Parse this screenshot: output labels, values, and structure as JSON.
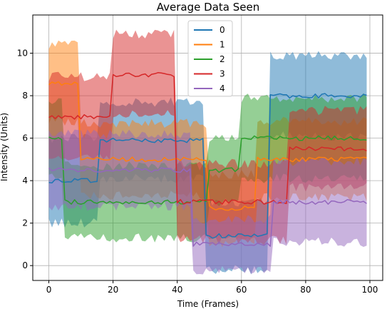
{
  "chart_data": {
    "type": "line",
    "title": "Average Data Seen",
    "xlabel": "Time (Frames)",
    "ylabel": "Intensity (Units)",
    "xlim": [
      -5,
      104
    ],
    "ylim": [
      -0.7,
      11.8
    ],
    "xticks": [
      0,
      20,
      40,
      60,
      80,
      100
    ],
    "yticks": [
      0,
      2,
      4,
      6,
      8,
      10
    ],
    "grid": true,
    "legend": {
      "placement": "top-center"
    },
    "x": {
      "start": 0,
      "end": 99,
      "step": 1
    },
    "series": [
      {
        "name": "0",
        "color": "#1f77b4",
        "band_alpha": 0.5,
        "segments": [
          {
            "from": 0,
            "to": 15,
            "mean": 4.0,
            "band": 2.0
          },
          {
            "from": 16,
            "to": 48,
            "mean": 5.9,
            "band": 1.8
          },
          {
            "from": 49,
            "to": 68,
            "mean": 1.4,
            "band": 1.6
          },
          {
            "from": 69,
            "to": 99,
            "mean": 8.0,
            "band": 1.9
          }
        ]
      },
      {
        "name": "1",
        "color": "#ff7f0e",
        "band_alpha": 0.5,
        "segments": [
          {
            "from": 0,
            "to": 9,
            "mean": 8.6,
            "band": 1.8
          },
          {
            "from": 10,
            "to": 49,
            "mean": 5.0,
            "band": 1.7
          },
          {
            "from": 50,
            "to": 64,
            "mean": 2.7,
            "band": 1.6
          },
          {
            "from": 65,
            "to": 99,
            "mean": 5.0,
            "band": 1.8
          }
        ]
      },
      {
        "name": "2",
        "color": "#2ca02c",
        "band_alpha": 0.5,
        "segments": [
          {
            "from": 0,
            "to": 4,
            "mean": 6.0,
            "band": 1.8
          },
          {
            "from": 5,
            "to": 49,
            "mean": 3.0,
            "band": 1.7
          },
          {
            "from": 50,
            "to": 59,
            "mean": 4.5,
            "band": 1.5
          },
          {
            "from": 60,
            "to": 99,
            "mean": 6.0,
            "band": 1.9
          }
        ]
      },
      {
        "name": "3",
        "color": "#d62728",
        "band_alpha": 0.5,
        "segments": [
          {
            "from": 0,
            "to": 19,
            "mean": 7.0,
            "band": 1.9
          },
          {
            "from": 20,
            "to": 39,
            "mean": 9.0,
            "band": 1.9
          },
          {
            "from": 40,
            "to": 74,
            "mean": 3.0,
            "band": 1.8
          },
          {
            "from": 75,
            "to": 99,
            "mean": 5.5,
            "band": 1.8
          }
        ]
      },
      {
        "name": "4",
        "color": "#9467bd",
        "band_alpha": 0.5,
        "segments": [
          {
            "from": 0,
            "to": 44,
            "mean": 4.5,
            "band": 1.7
          },
          {
            "from": 45,
            "to": 69,
            "mean": 1.0,
            "band": 1.2
          },
          {
            "from": 70,
            "to": 99,
            "mean": 3.0,
            "band": 1.9
          }
        ]
      }
    ]
  }
}
